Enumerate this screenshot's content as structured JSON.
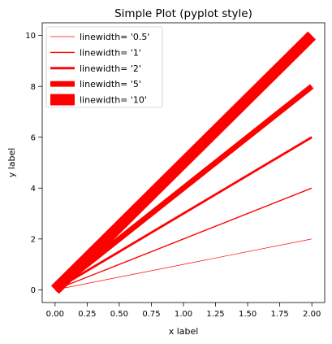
{
  "chart_data": {
    "type": "line",
    "title": "Simple Plot (pyplot style)",
    "xlabel": "x label",
    "ylabel": "y label",
    "xlim": [
      -0.1,
      2.1
    ],
    "ylim": [
      -0.5,
      10.5
    ],
    "x_ticks": [
      "0.00",
      "0.25",
      "0.50",
      "0.75",
      "1.00",
      "1.25",
      "1.50",
      "1.75",
      "2.00"
    ],
    "y_ticks": [
      "0",
      "2",
      "4",
      "6",
      "8",
      "10"
    ],
    "legend_position": "upper-left",
    "grid": false,
    "color": "#ff0000",
    "series": [
      {
        "name": "linewidth= '0.5'",
        "linewidth": 0.5,
        "x": [
          0,
          2
        ],
        "y": [
          0,
          2
        ]
      },
      {
        "name": "linewidth= '1'",
        "linewidth": 1,
        "x": [
          0,
          2
        ],
        "y": [
          0,
          4
        ]
      },
      {
        "name": "linewidth= '2'",
        "linewidth": 2,
        "x": [
          0,
          2
        ],
        "y": [
          0,
          6
        ]
      },
      {
        "name": "linewidth= '5'",
        "linewidth": 5,
        "x": [
          0,
          2
        ],
        "y": [
          0,
          8
        ]
      },
      {
        "name": "linewidth= '10'",
        "linewidth": 10,
        "x": [
          0,
          2
        ],
        "y": [
          0,
          10
        ]
      }
    ]
  }
}
